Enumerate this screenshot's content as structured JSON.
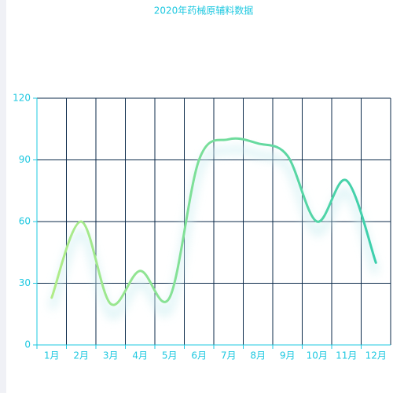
{
  "chart_data": {
    "type": "line",
    "title": "2020年药械原辅料数据",
    "categories": [
      "1月",
      "2月",
      "3月",
      "4月",
      "5月",
      "6月",
      "7月",
      "8月",
      "9月",
      "10月",
      "11月",
      "12月"
    ],
    "series": [
      {
        "values": [
          23,
          60,
          20,
          36,
          23,
          90,
          100,
          98,
          92,
          60,
          80,
          40
        ],
        "gradient": [
          "#b0ec88",
          "#3ccfad"
        ]
      }
    ],
    "ylim": [
      0,
      120
    ],
    "yticks": [
      0,
      30,
      60,
      90,
      120
    ],
    "grid": true,
    "smooth": true
  }
}
